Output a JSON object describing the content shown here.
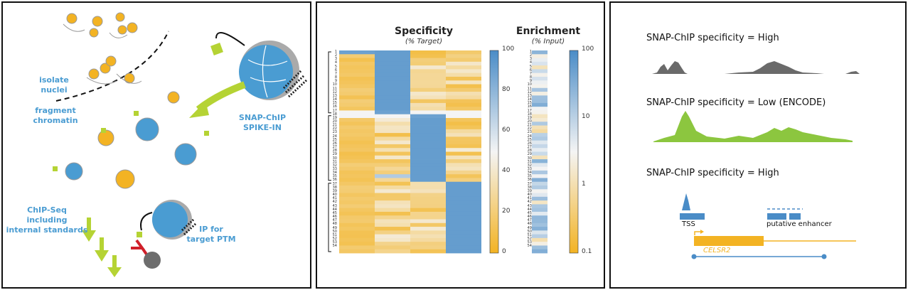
{
  "panel_a": {
    "labels": {
      "isolate": "isolate\nnuclei",
      "fragment": "fragment\nchromatin",
      "spikein": "SNAP-ChIP\nSPIKE-IN",
      "chipseq": "ChIP-Seq\nincluding\ninternal standards",
      "ip": "IP for\ntarget PTM"
    },
    "colors": {
      "nucleosome_orange": "#f3b323",
      "nucleosome_blue": "#4a9cd2",
      "arrow_green": "#b5d334",
      "antibody_red": "#d0202a",
      "bead_gray": "#6d6d6d"
    }
  },
  "panel_b": {
    "specificity_title": "Specificity",
    "specificity_sub": "(% Target)",
    "enrichment_title": "Enrichment",
    "enrichment_sub": "(% Input)",
    "specificity_scale": [
      "100",
      "80",
      "60",
      "40",
      "20",
      "0"
    ],
    "enrichment_scale": [
      "100",
      "10",
      "1",
      "0.1"
    ],
    "row_labels": [
      "1",
      "2",
      "3",
      "4",
      "5",
      "6",
      "7",
      "8",
      "9",
      "10",
      "11",
      "12",
      "13",
      "14",
      "15",
      "16",
      "17",
      "18",
      "19",
      "20",
      "21",
      "22",
      "23",
      "24",
      "25",
      "26",
      "27",
      "28",
      "29",
      "30",
      "31",
      "32",
      "33",
      "34",
      "35",
      "36",
      "37",
      "38",
      "39",
      "40",
      "41",
      "42",
      "43",
      "44",
      "45",
      "46",
      "47",
      "48",
      "49",
      "50",
      "51",
      "52",
      "53",
      "54"
    ],
    "colors": {
      "high": "#4a8cc7",
      "mid": "#f2f2f2",
      "low": "#f3b323"
    }
  },
  "panel_c": {
    "track1_title": "SNAP-ChIP specificity = High",
    "track2_title": "SNAP-ChIP specificity = Low (ENCODE)",
    "track3_title": "SNAP-ChIP specificity = High",
    "tss_label": "TSS",
    "enhancer_label": "putative enhancer",
    "gene_name": "CELSR2",
    "colors": {
      "track1": "#6a6a6a",
      "track2": "#8cc63f",
      "track3": "#4a8cc7",
      "gene": "#f3b323",
      "loop": "#4a8cc7"
    }
  }
}
